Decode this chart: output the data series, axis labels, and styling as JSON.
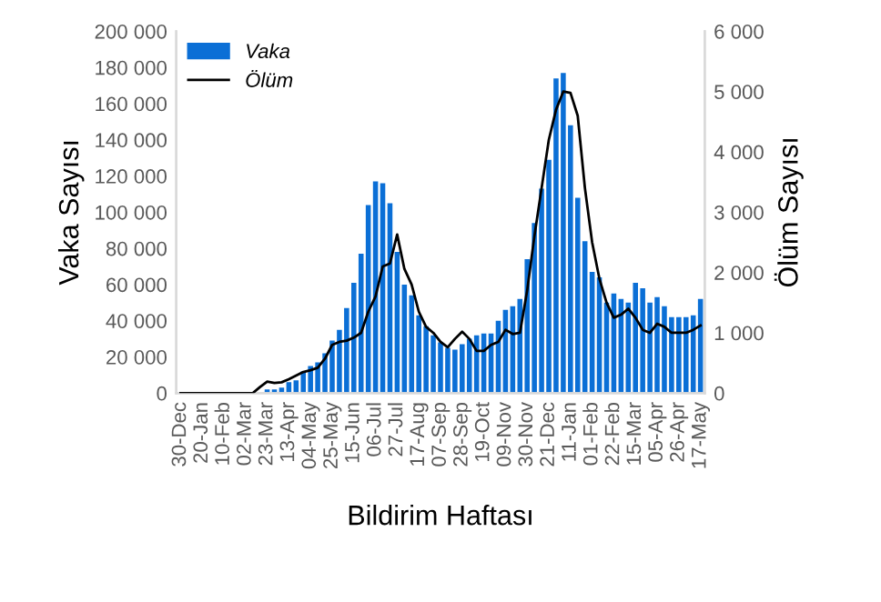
{
  "chart_data": {
    "type": "bar",
    "xlabel": "Bildirim Haftası",
    "ylabel": "Vaka Sayısı",
    "y2label": "Ölüm Sayısı",
    "categories": [
      "30-Dec",
      null,
      null,
      "20-Jan",
      null,
      null,
      "10-Feb",
      null,
      null,
      "02-Mar",
      null,
      null,
      "23-Mar",
      null,
      null,
      "13-Apr",
      null,
      null,
      "04-May",
      null,
      null,
      "25-May",
      null,
      null,
      "15-Jun",
      null,
      null,
      "06-Jul",
      null,
      null,
      "27-Jul",
      null,
      null,
      "17-Aug",
      null,
      null,
      "07-Sep",
      null,
      null,
      "28-Sep",
      null,
      null,
      "19-Oct",
      null,
      null,
      "09-Nov",
      null,
      null,
      "30-Nov",
      null,
      null,
      "21-Dec",
      null,
      null,
      "11-Jan",
      null,
      null,
      "01-Feb",
      null,
      null,
      "22-Feb",
      null,
      null,
      "15-Mar",
      null,
      null,
      "05-Apr",
      null,
      null,
      "26-Apr",
      null,
      null,
      "17-May"
    ],
    "series": [
      {
        "name": "Vaka",
        "color": "#0b6fd6",
        "values": [
          0,
          0,
          0,
          0,
          0,
          0,
          0,
          0,
          0,
          0,
          0,
          0,
          2000,
          2000,
          3000,
          6000,
          7000,
          12000,
          15000,
          17000,
          22000,
          29000,
          35000,
          47000,
          61000,
          77000,
          104000,
          117000,
          116000,
          105000,
          78000,
          60000,
          54000,
          43000,
          37000,
          32000,
          28000,
          25000,
          24000,
          27000,
          30000,
          32000,
          33000,
          33000,
          40000,
          46000,
          48000,
          52000,
          74000,
          94000,
          113000,
          129000,
          174000,
          177000,
          148000,
          108000,
          84000,
          67000,
          64000,
          50000,
          55000,
          52000,
          50000,
          61000,
          58000,
          50000,
          53000,
          48000,
          42000,
          42000,
          42000,
          43000,
          52000
        ]
      },
      {
        "name": "Ölüm",
        "type": "line",
        "axis": "y2",
        "color": "#000000",
        "values": [
          0,
          0,
          0,
          0,
          0,
          0,
          0,
          0,
          0,
          0,
          0,
          100,
          190,
          170,
          180,
          230,
          290,
          350,
          380,
          420,
          570,
          800,
          850,
          870,
          920,
          1000,
          1350,
          1600,
          2100,
          2150,
          2630,
          2060,
          1800,
          1350,
          1100,
          1000,
          850,
          760,
          900,
          1020,
          900,
          700,
          700,
          800,
          850,
          1050,
          980,
          1000,
          1700,
          2600,
          3400,
          4200,
          4700,
          5000,
          4980,
          4600,
          3400,
          2500,
          1900,
          1500,
          1250,
          1300,
          1400,
          1250,
          1050,
          1000,
          1150,
          1100,
          1000,
          1000,
          1000,
          1050,
          1120
        ]
      }
    ],
    "ylim": [
      0,
      200000
    ],
    "yticks": [
      0,
      {
        "value": 20000,
        "label": "20 000"
      },
      {
        "value": 40000,
        "label": "40 000"
      },
      {
        "value": 60000,
        "label": "60 000"
      },
      {
        "value": 80000,
        "label": "80 000"
      },
      {
        "value": 100000,
        "label": "100 000"
      },
      {
        "value": 120000,
        "label": "120 000"
      },
      {
        "value": 140000,
        "label": "140 000"
      },
      {
        "value": 160000,
        "label": "160 000"
      },
      {
        "value": 180000,
        "label": "180 000"
      },
      {
        "value": 200000,
        "label": "200 000"
      }
    ],
    "y2lim": [
      0,
      6000
    ],
    "y2ticks": [
      0,
      {
        "value": 1000,
        "label": "1 000"
      },
      {
        "value": 2000,
        "label": "2 000"
      },
      {
        "value": 3000,
        "label": "3 000"
      },
      {
        "value": 4000,
        "label": "4 000"
      },
      {
        "value": 5000,
        "label": "5 000"
      },
      {
        "value": 6000,
        "label": "6 000"
      }
    ],
    "legend": "top left",
    "grid": false,
    "marker": "none",
    "line_style": "solid"
  }
}
